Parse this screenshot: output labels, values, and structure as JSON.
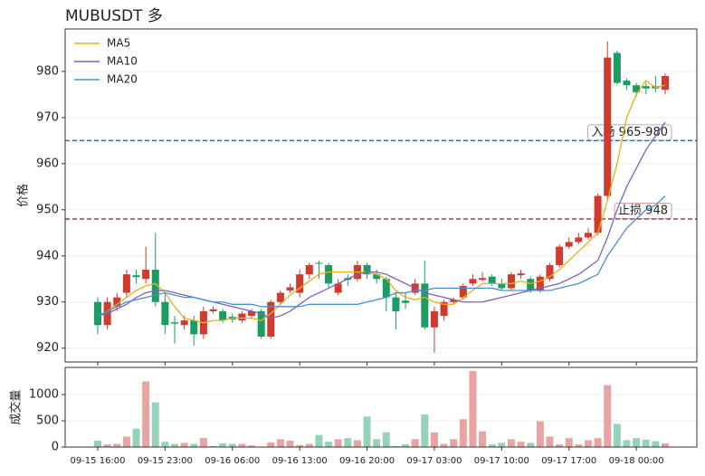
{
  "chart_data": [
    {
      "type": "candlestick",
      "title": "MUBUSDT 多",
      "ylabel": "价格",
      "categories": [
        "09-15 16:00",
        null,
        null,
        null,
        null,
        null,
        null,
        "09-15 23:00",
        null,
        null,
        null,
        null,
        null,
        null,
        "09-16 06:00",
        null,
        null,
        null,
        null,
        null,
        null,
        "09-16 13:00",
        null,
        null,
        null,
        null,
        null,
        null,
        "09-16 20:00",
        null,
        null,
        null,
        null,
        null,
        null,
        "09-17 03:00",
        null,
        null,
        null,
        null,
        null,
        null,
        "09-17 10:00",
        null,
        null,
        null,
        null,
        null,
        null,
        "09-17 17:00",
        null,
        null,
        null,
        null,
        null,
        null,
        "09-18 00:00",
        null,
        null,
        null
      ],
      "open": [
        930,
        925,
        929,
        932,
        935.8,
        935,
        937,
        930,
        925.6,
        925,
        926,
        923,
        928,
        928,
        926.8,
        926,
        927,
        928,
        922.5,
        930,
        932.5,
        932,
        936,
        938.5,
        938,
        932,
        935.2,
        935,
        938,
        936,
        935,
        931,
        930.3,
        932,
        934,
        924.5,
        927,
        930,
        931,
        934,
        934.8,
        935.5,
        934,
        933,
        935.8,
        935,
        932.5,
        935,
        938,
        942,
        943,
        944,
        945,
        953,
        984,
        978,
        977,
        976.8,
        976.8,
        976
      ],
      "high": [
        931,
        931,
        932,
        937,
        937,
        942,
        945,
        932,
        927,
        927,
        927,
        929,
        929,
        928.5,
        927.5,
        928,
        928.5,
        928.5,
        930.5,
        932.5,
        934,
        937,
        938.5,
        939,
        938.5,
        935,
        936,
        939,
        938.5,
        937,
        935.5,
        932,
        932,
        935,
        939,
        929,
        930.5,
        931,
        934,
        936,
        936.5,
        936,
        935,
        936.5,
        937,
        935.5,
        936,
        938.5,
        942.5,
        944,
        945,
        946,
        953.5,
        986.5,
        984.5,
        978.5,
        977.5,
        977.5,
        979,
        979.5
      ],
      "low": [
        923,
        924,
        928,
        931,
        934,
        934,
        929,
        923,
        921,
        924,
        920.5,
        922,
        927.5,
        925.5,
        925.5,
        925.5,
        926.5,
        922,
        922,
        929.5,
        932,
        931,
        935,
        935,
        933,
        931.5,
        933.5,
        934.5,
        935,
        934,
        928,
        924,
        928.5,
        931.5,
        924,
        919,
        926,
        929.5,
        930.5,
        933.5,
        934.5,
        933.5,
        932.5,
        932.5,
        935,
        932,
        932,
        934.5,
        937.5,
        941.5,
        942.5,
        943.5,
        944.5,
        952,
        977,
        976,
        974.5,
        975,
        975.5,
        975
      ],
      "close": [
        925,
        930,
        931,
        936,
        935.4,
        937,
        930,
        925,
        925.3,
        926,
        923,
        928,
        928.4,
        926,
        926.2,
        927.5,
        928,
        922.5,
        930,
        932,
        933.2,
        936,
        938,
        938.3,
        934,
        934,
        934.8,
        938,
        936,
        935,
        931,
        928,
        929.8,
        934,
        924.5,
        928,
        930,
        930.5,
        933.5,
        935,
        935.2,
        934,
        933,
        936,
        936.2,
        932.5,
        935.5,
        938,
        942,
        943,
        944,
        945,
        953,
        983,
        977.5,
        977,
        975.5,
        976.3,
        976.3,
        979
      ],
      "up_color": "#d03a2f",
      "down_color": "#1a9c63",
      "series": [
        {
          "name": "MA5",
          "color": "#e6b01c",
          "values": [
            927,
            928,
            929.5,
            931,
            932.5,
            933.5,
            934,
            932,
            929,
            926.5,
            926,
            925.5,
            926,
            926,
            926.5,
            926.5,
            926.5,
            926,
            927.5,
            929.5,
            931.5,
            933,
            934.5,
            936,
            936.5,
            936.5,
            936.5,
            936.5,
            936.5,
            936,
            935,
            932.5,
            931,
            930.5,
            931,
            930,
            929.5,
            929.5,
            931,
            932.5,
            934,
            934,
            934,
            934,
            934.5,
            934,
            934.5,
            935.5,
            937,
            939,
            941,
            943,
            945,
            952,
            960,
            970,
            975,
            978,
            976.5,
            977
          ]
        },
        {
          "name": "MA10",
          "color": "#7e62b8",
          "values": [
            927,
            927.5,
            928.5,
            929.5,
            931,
            932,
            932.5,
            932.5,
            932,
            931.5,
            931,
            930.5,
            930,
            929.5,
            929,
            928.5,
            928,
            927.5,
            926.5,
            927,
            928,
            929.5,
            931,
            932,
            933,
            934,
            935,
            936,
            936.5,
            936.5,
            936,
            935,
            934,
            933,
            932,
            931.5,
            931,
            930.5,
            930,
            930,
            930,
            930.5,
            931,
            931.5,
            932,
            932.5,
            933,
            933.5,
            934,
            935,
            936,
            937.5,
            939,
            944,
            950,
            955,
            959,
            963,
            966,
            969
          ]
        },
        {
          "name": "MA20",
          "color": "#4a8fd0",
          "values": [
            927,
            928,
            929,
            930,
            930.5,
            931,
            931.5,
            932,
            931.5,
            931,
            931,
            930.5,
            930,
            930,
            929.5,
            929.5,
            929.5,
            929,
            929,
            929,
            929,
            929,
            929.5,
            929.5,
            929.5,
            929.5,
            929.5,
            929.5,
            930,
            930.5,
            931,
            932,
            932,
            932.5,
            932.5,
            933,
            933,
            933,
            933,
            933,
            933,
            933,
            932.5,
            932.5,
            932.5,
            932.5,
            932.5,
            932.5,
            933,
            933.5,
            934,
            935,
            936,
            940,
            943,
            946,
            948,
            950,
            951,
            953
          ]
        }
      ],
      "hlines": [
        {
          "value": 965,
          "label": "入场 965-980",
          "color": "#2d6fa6"
        },
        {
          "value": 948,
          "label": "止损 948",
          "color": "#a53a3a"
        }
      ],
      "ylim": [
        917,
        989.2
      ],
      "yticks": [
        920,
        930,
        940,
        950,
        960,
        970,
        980
      ],
      "grid": true,
      "legend": "upper-left"
    },
    {
      "type": "volume",
      "ylabel": "成交量",
      "values": [
        120,
        50,
        60,
        200,
        350,
        1250,
        850,
        100,
        60,
        80,
        60,
        170,
        20,
        70,
        60,
        60,
        30,
        10,
        90,
        150,
        120,
        40,
        60,
        230,
        100,
        150,
        170,
        130,
        580,
        150,
        280,
        20,
        50,
        150,
        620,
        280,
        60,
        150,
        530,
        1450,
        300,
        50,
        80,
        150,
        100,
        80,
        490,
        200,
        50,
        170,
        50,
        130,
        170,
        1180,
        440,
        130,
        170,
        140,
        110,
        70
      ],
      "up_color": "#e8a3a3",
      "down_color": "#94d3b8",
      "ylim": [
        0,
        1517
      ],
      "yticks": [
        0,
        500,
        1000
      ],
      "grid": true
    }
  ]
}
